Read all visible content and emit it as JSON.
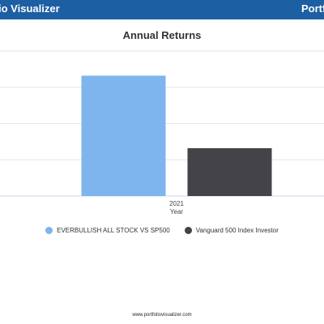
{
  "header": {
    "brand_left": "io Visualizer",
    "brand_right": "Portfo"
  },
  "colors": {
    "header_bg": "#1d5fa3",
    "series_1": "#7eb5ec",
    "series_2": "#434348"
  },
  "footer": {
    "url": "www.portfoliovisualizer.com"
  },
  "chart_data": {
    "type": "bar",
    "title": "Annual Returns",
    "xlabel": "Year",
    "ylabel": "",
    "categories": [
      "2021"
    ],
    "series": [
      {
        "name": "EVERBULLISH ALL STOCK VS SP500",
        "values": [
          33.2
        ],
        "color": "#7eb5ec"
      },
      {
        "name": "Vanguard 500 Index Investor",
        "values": [
          13.2
        ],
        "color": "#434348"
      }
    ],
    "ylim": [
      0,
      40
    ],
    "grid": true,
    "legend": "bottom"
  }
}
